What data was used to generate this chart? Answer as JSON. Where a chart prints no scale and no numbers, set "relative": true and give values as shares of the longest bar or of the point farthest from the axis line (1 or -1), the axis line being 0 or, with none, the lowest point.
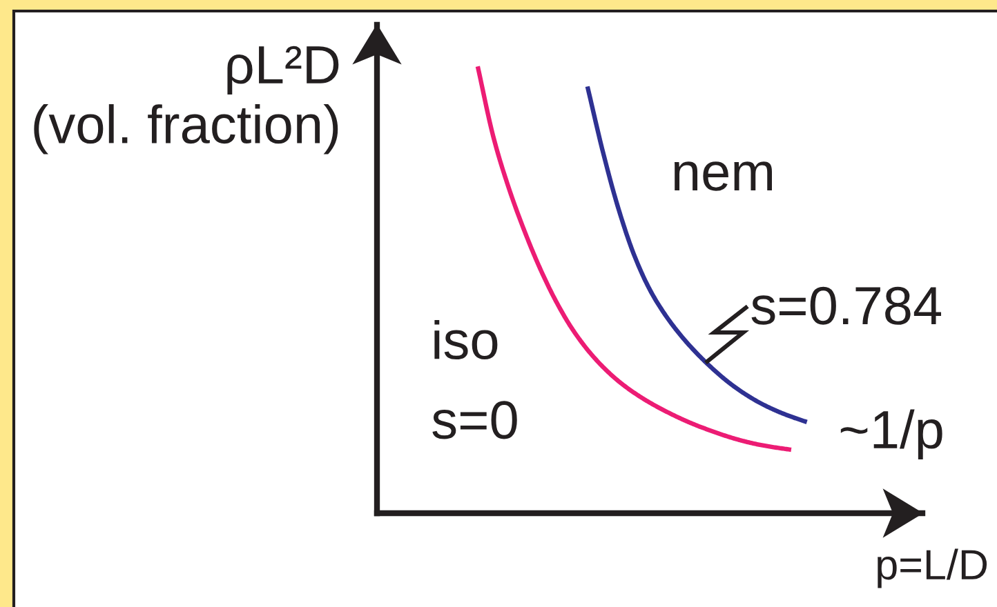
{
  "chart_data": {
    "type": "line",
    "relative": true,
    "xlabel": "p=L/D",
    "ylabel": "ρL²D\n(vol. fraction)",
    "annotations": [
      "nem",
      "iso",
      "s=0",
      "s=0.784",
      "~1/p"
    ],
    "categories": [
      null,
      null,
      null,
      null,
      null,
      null,
      null,
      null,
      null,
      null,
      null,
      null,
      null,
      null,
      null,
      null,
      null,
      null,
      null,
      null,
      null,
      null
    ],
    "series": [
      {
        "color": "#ec1c74",
        "values": [
          1.0,
          0.842,
          0.726,
          0.63,
          0.546,
          0.474,
          0.414,
          0.366,
          0.327,
          0.295,
          0.269,
          0.247,
          0.228,
          0.211,
          0.196,
          0.183,
          0.171,
          0.161,
          0.153,
          0.147,
          0.142,
          null
        ]
      },
      {
        "color": "#2e3192",
        "values": [
          null,
          null,
          null,
          null,
          null,
          null,
          null,
          0.955,
          0.807,
          0.679,
          0.576,
          0.499,
          0.442,
          0.396,
          0.357,
          0.323,
          0.293,
          0.268,
          0.247,
          0.23,
          0.216,
          0.204
        ]
      }
    ]
  }
}
